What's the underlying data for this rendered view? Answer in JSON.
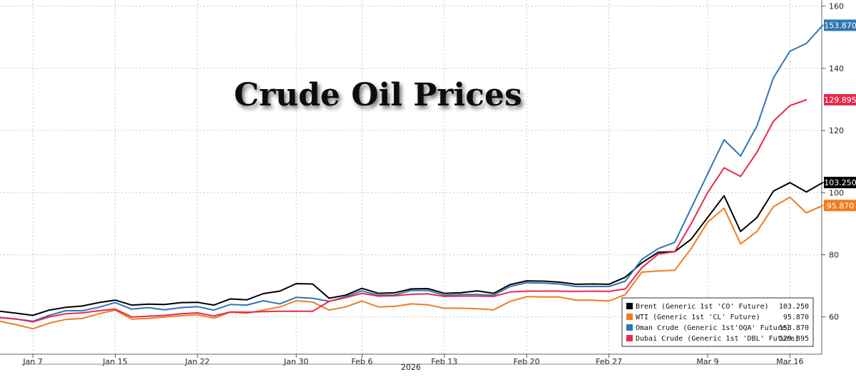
{
  "chart_data": {
    "type": "line",
    "title": "Crude Oil Prices",
    "xlabel": "",
    "ylabel": "",
    "year_label": "2026",
    "x_ticks": [
      "Jan 7",
      "Jan 15",
      "Jan 22",
      "Jan 30",
      "Feb 6",
      "Feb 13",
      "Feb 20",
      "Feb 27",
      "Mar 9",
      "Mar 16"
    ],
    "y_ticks": [
      60,
      80,
      100,
      120,
      140,
      160
    ],
    "ylim": [
      48,
      162
    ],
    "grid": true,
    "legend_position": "bottom-right",
    "series": [
      {
        "name": "Brent (Generic 1st 'CO' Future)",
        "last_value": "103.250",
        "color": "#000000",
        "label_text_color": "#ffffff",
        "values": [
          61.8,
          61.2,
          60.5,
          62.2,
          63.1,
          63.5,
          64.6,
          65.4,
          63.8,
          64.1,
          64.0,
          64.6,
          64.7,
          63.8,
          65.8,
          65.5,
          67.5,
          68.3,
          70.7,
          70.6,
          66.0,
          67.0,
          69.2,
          67.6,
          67.8,
          69.0,
          69.1,
          67.6,
          67.8,
          68.4,
          67.6,
          70.4,
          71.6,
          71.5,
          71.2,
          70.5,
          70.6,
          70.5,
          72.8,
          77.4,
          80.8,
          81.0,
          85.0,
          92.0,
          99.0,
          87.5,
          92.0,
          100.5,
          103.2,
          100.2,
          103.25
        ]
      },
      {
        "name": "WTI (Generic 1st 'CL' Future)",
        "last_value": "95.870",
        "color": "#f07c1f",
        "label_text_color": "#ffffff",
        "values": [
          58.6,
          57.5,
          56.2,
          58.0,
          59.2,
          59.5,
          61.0,
          62.2,
          59.3,
          59.5,
          60.0,
          60.4,
          60.7,
          59.6,
          61.5,
          61.2,
          62.2,
          63.2,
          65.2,
          64.8,
          62.2,
          63.2,
          65.1,
          63.2,
          63.4,
          64.2,
          63.9,
          62.8,
          62.8,
          62.6,
          62.3,
          65.0,
          66.5,
          66.4,
          66.4,
          65.4,
          65.4,
          65.1,
          67.2,
          74.4,
          74.8,
          75.0,
          82.0,
          90.5,
          95.0,
          83.5,
          87.5,
          95.5,
          98.5,
          93.5,
          95.87
        ]
      },
      {
        "name": "Oman Crude (Generic 1st'OQA' Future)",
        "last_value": "153.870",
        "color": "#2f76b5",
        "label_text_color": "#ffffff",
        "values": [
          59.8,
          59.3,
          58.6,
          60.5,
          62.0,
          62.0,
          63.1,
          64.6,
          62.5,
          63.0,
          62.3,
          63.0,
          63.3,
          62.2,
          64.0,
          63.8,
          65.2,
          64.2,
          66.3,
          66.0,
          65.0,
          66.5,
          68.4,
          67.0,
          67.1,
          68.5,
          68.5,
          67.0,
          67.2,
          67.2,
          67.0,
          69.8,
          71.0,
          70.9,
          70.6,
          69.8,
          69.8,
          69.8,
          71.5,
          78.5,
          82.0,
          84.0,
          95.0,
          106.0,
          117.0,
          111.8,
          121.5,
          137.0,
          145.5,
          148.0,
          153.87
        ]
      },
      {
        "name": "Dubai Crude (Generic 1st 'DBL' Future)",
        "last_value": "129.895",
        "color": "#e8294e",
        "label_text_color": "#ffffff",
        "values": [
          59.8,
          59.3,
          58.4,
          60.0,
          61.0,
          61.3,
          62.0,
          62.5,
          60.0,
          60.2,
          60.5,
          61.0,
          61.3,
          60.3,
          61.6,
          61.5,
          61.7,
          61.8,
          61.8,
          61.8,
          65.0,
          66.2,
          67.6,
          66.7,
          66.8,
          67.3,
          67.4,
          66.6,
          66.7,
          66.7,
          66.6,
          68.0,
          68.3,
          68.3,
          68.3,
          68.2,
          68.3,
          68.2,
          69.0,
          75.8,
          80.2,
          81.0,
          90.0,
          100.0,
          108.0,
          105.2,
          113.0,
          123.0,
          128.0,
          129.895
        ]
      }
    ]
  }
}
